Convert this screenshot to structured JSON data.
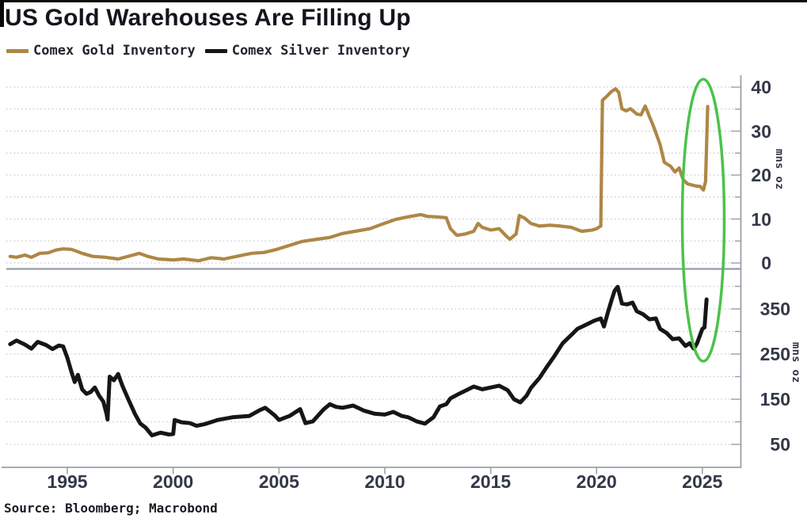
{
  "title": "US Gold Warehouses Are Filling Up",
  "legend": {
    "items": [
      {
        "label": "Comex Gold Inventory",
        "color": "#AE8746"
      },
      {
        "label": "Comex Silver Inventory",
        "color": "#161616"
      }
    ]
  },
  "source_note": "Source: Bloomberg; Macrobond",
  "colors": {
    "gold_line": "#AE8746",
    "silver_line": "#161616",
    "highlight_green": "#4CC24C",
    "gridline": "#C6CAD0",
    "axis_line": "#9AA1A9",
    "panel_separator": "#939BA6",
    "tick_text": "#333847"
  },
  "annotation": {
    "shape": "ellipse",
    "color": "#4CC24C",
    "spans": "right edge of both panels",
    "highlights": "early-2025 spike in both gold and silver inventories"
  },
  "chart_data": [
    {
      "type": "line",
      "panel": "top",
      "title": "Comex Gold Inventory",
      "ylabel": "mns oz",
      "yticks": [
        40,
        30,
        20,
        10,
        0
      ],
      "minor_grid_step": 5,
      "ylim": [
        0,
        42.5
      ],
      "xlim": [
        1992.2,
        2026.8
      ],
      "xticks": [
        1995,
        2000,
        2005,
        2010,
        2015,
        2020,
        2025
      ],
      "grid": "dotted-horizontal",
      "series": [
        {
          "name": "Comex Gold Inventory",
          "color": "#AE8746",
          "x": [
            1992.3,
            1992.6,
            1993.0,
            1993.3,
            1993.7,
            1994.1,
            1994.5,
            1994.8,
            1995.2,
            1995.7,
            1996.2,
            1996.8,
            1997.4,
            1998.1,
            1998.4,
            1998.8,
            1999.3,
            2000.0,
            2000.5,
            2001.2,
            2001.8,
            2002.4,
            2003.0,
            2003.7,
            2004.3,
            2004.9,
            2005.5,
            2006.1,
            2006.8,
            2007.4,
            2008.0,
            2008.6,
            2009.3,
            2009.8,
            2010.5,
            2011.1,
            2011.7,
            2012.0,
            2012.4,
            2012.9,
            2013.1,
            2013.4,
            2013.8,
            2014.2,
            2014.4,
            2014.6,
            2015.0,
            2015.4,
            2015.7,
            2015.9,
            2016.2,
            2016.35,
            2016.6,
            2016.9,
            2017.3,
            2017.8,
            2018.3,
            2018.8,
            2019.3,
            2019.8,
            2020.0,
            2020.2,
            2020.28,
            2020.5,
            2020.7,
            2020.9,
            2021.05,
            2021.2,
            2021.4,
            2021.6,
            2021.9,
            2022.1,
            2022.3,
            2022.5,
            2022.7,
            2023.0,
            2023.2,
            2023.5,
            2023.7,
            2023.9,
            2024.1,
            2024.3,
            2024.7,
            2024.9,
            2025.05,
            2025.15,
            2025.25
          ],
          "y": [
            1.5,
            1.3,
            1.8,
            1.3,
            2.2,
            2.3,
            3.0,
            3.2,
            3.1,
            2.2,
            1.5,
            1.3,
            0.9,
            1.8,
            2.2,
            1.5,
            0.9,
            0.7,
            0.9,
            0.5,
            1.2,
            0.9,
            1.5,
            2.2,
            2.4,
            3.1,
            4.0,
            4.9,
            5.4,
            5.8,
            6.7,
            7.2,
            7.8,
            8.7,
            9.9,
            10.5,
            11.0,
            10.6,
            10.5,
            10.3,
            7.8,
            6.3,
            6.6,
            7.2,
            9.0,
            8.1,
            7.5,
            7.8,
            6.3,
            5.4,
            6.6,
            10.8,
            10.2,
            9.0,
            8.4,
            8.6,
            8.4,
            8.1,
            7.2,
            7.5,
            7.8,
            8.4,
            37.0,
            38.0,
            39.0,
            39.6,
            38.8,
            35.1,
            34.6,
            35.1,
            33.9,
            33.7,
            35.7,
            33.3,
            31.0,
            27.0,
            22.9,
            22.0,
            20.7,
            21.6,
            18.9,
            18.0,
            17.5,
            17.4,
            16.6,
            18.5,
            35.6
          ]
        }
      ]
    },
    {
      "type": "line",
      "panel": "bottom",
      "title": "Comex Silver Inventory",
      "ylabel": "mns oz",
      "yticks": [
        350,
        250,
        150,
        50
      ],
      "minor_grid_step": 50,
      "ylim": [
        0,
        435
      ],
      "xlim": [
        1992.2,
        2026.8
      ],
      "xticks": [
        1995,
        2000,
        2005,
        2010,
        2015,
        2020,
        2025
      ],
      "grid": "dotted-horizontal",
      "series": [
        {
          "name": "Comex Silver Inventory",
          "color": "#161616",
          "x": [
            1992.3,
            1992.6,
            1993.0,
            1993.3,
            1993.6,
            1994.0,
            1994.3,
            1994.6,
            1994.8,
            1995.0,
            1995.2,
            1995.35,
            1995.5,
            1995.7,
            1995.9,
            1996.1,
            1996.3,
            1996.5,
            1996.7,
            1996.85,
            1996.9,
            1997.0,
            1997.2,
            1997.4,
            1997.6,
            1997.9,
            1998.2,
            1998.45,
            1998.7,
            1999.0,
            1999.4,
            1999.8,
            2000.0,
            2000.07,
            2000.4,
            2000.8,
            2001.1,
            2001.5,
            2002.1,
            2002.8,
            2003.6,
            2004.1,
            2004.35,
            2004.8,
            2005.0,
            2005.5,
            2006.0,
            2006.25,
            2006.6,
            2007.1,
            2007.4,
            2007.7,
            2008.0,
            2008.5,
            2009.0,
            2009.5,
            2010.0,
            2010.4,
            2010.8,
            2011.1,
            2011.5,
            2011.9,
            2012.3,
            2012.6,
            2012.9,
            2013.1,
            2013.5,
            2013.9,
            2014.2,
            2014.6,
            2015.0,
            2015.4,
            2015.8,
            2016.1,
            2016.4,
            2016.7,
            2016.9,
            2017.3,
            2017.6,
            2018.0,
            2018.4,
            2018.8,
            2019.1,
            2019.5,
            2019.9,
            2020.2,
            2020.35,
            2020.55,
            2020.7,
            2020.85,
            2021.0,
            2021.2,
            2021.45,
            2021.7,
            2021.9,
            2022.2,
            2022.5,
            2022.8,
            2023.0,
            2023.3,
            2023.6,
            2023.9,
            2024.2,
            2024.4,
            2024.6,
            2024.75,
            2025.0,
            2025.1,
            2025.2
          ],
          "y": [
            272,
            280,
            271,
            262,
            277,
            270,
            261,
            269,
            267,
            242,
            210,
            188,
            204,
            172,
            162,
            166,
            176,
            158,
            145,
            118,
            105,
            200,
            192,
            206,
            180,
            148,
            117,
            96,
            87,
            70,
            76,
            72,
            73,
            104,
            99,
            97,
            91,
            95,
            104,
            110,
            113,
            126,
            131,
            114,
            104,
            113,
            128,
            97,
            101,
            127,
            139,
            133,
            131,
            136,
            125,
            118,
            116,
            122,
            113,
            110,
            101,
            96,
            110,
            134,
            139,
            152,
            162,
            171,
            178,
            172,
            176,
            180,
            170,
            150,
            143,
            158,
            175,
            197,
            218,
            245,
            274,
            292,
            306,
            315,
            324,
            329,
            311,
            345,
            368,
            390,
            399,
            362,
            360,
            364,
            345,
            338,
            327,
            329,
            306,
            297,
            283,
            285,
            268,
            274,
            262,
            274,
            306,
            309,
            371
          ]
        }
      ]
    }
  ]
}
